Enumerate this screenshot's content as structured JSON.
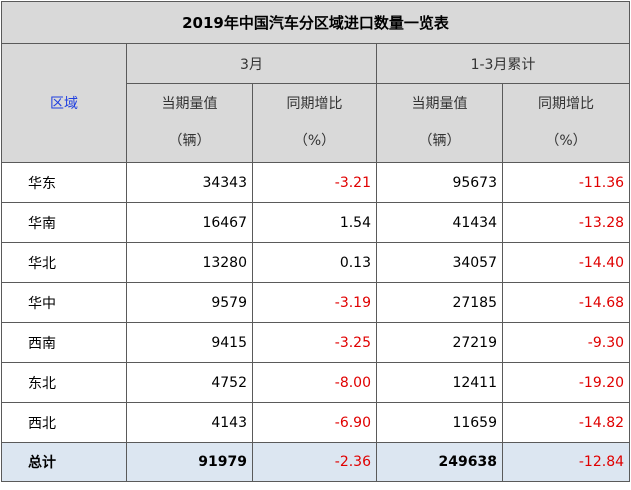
{
  "title": "2019年中国汽车分区域进口数量一览表",
  "header": {
    "region": "区域",
    "march": "3月",
    "cumulative": "1-3月累计",
    "volume": "当期量值",
    "volume_unit": "（辆）",
    "yoy": "同期增比",
    "yoy_unit": "（%）"
  },
  "rows": [
    {
      "region": "华东",
      "mar_volume": "34343",
      "mar_yoy": "-3.21",
      "cum_volume": "95673",
      "cum_yoy": "-11.36"
    },
    {
      "region": "华南",
      "mar_volume": "16467",
      "mar_yoy": "1.54",
      "cum_volume": "41434",
      "cum_yoy": "-13.28"
    },
    {
      "region": "华北",
      "mar_volume": "13280",
      "mar_yoy": "0.13",
      "cum_volume": "34057",
      "cum_yoy": "-14.40"
    },
    {
      "region": "华中",
      "mar_volume": "9579",
      "mar_yoy": "-3.19",
      "cum_volume": "27185",
      "cum_yoy": "-14.68"
    },
    {
      "region": "西南",
      "mar_volume": "9415",
      "mar_yoy": "-3.25",
      "cum_volume": "27219",
      "cum_yoy": "-9.30"
    },
    {
      "region": "东北",
      "mar_volume": "4752",
      "mar_yoy": "-8.00",
      "cum_volume": "12411",
      "cum_yoy": "-19.20"
    },
    {
      "region": "西北",
      "mar_volume": "4143",
      "mar_yoy": "-6.90",
      "cum_volume": "11659",
      "cum_yoy": "-14.82"
    }
  ],
  "total": {
    "region": "总计",
    "mar_volume": "91979",
    "mar_yoy": "-2.36",
    "cum_volume": "249638",
    "cum_yoy": "-12.84"
  },
  "colors": {
    "header_bg": "#d9d9d9",
    "total_bg": "#dce6f1",
    "negative": "#e00000",
    "region_header": "#1f3fe0"
  }
}
